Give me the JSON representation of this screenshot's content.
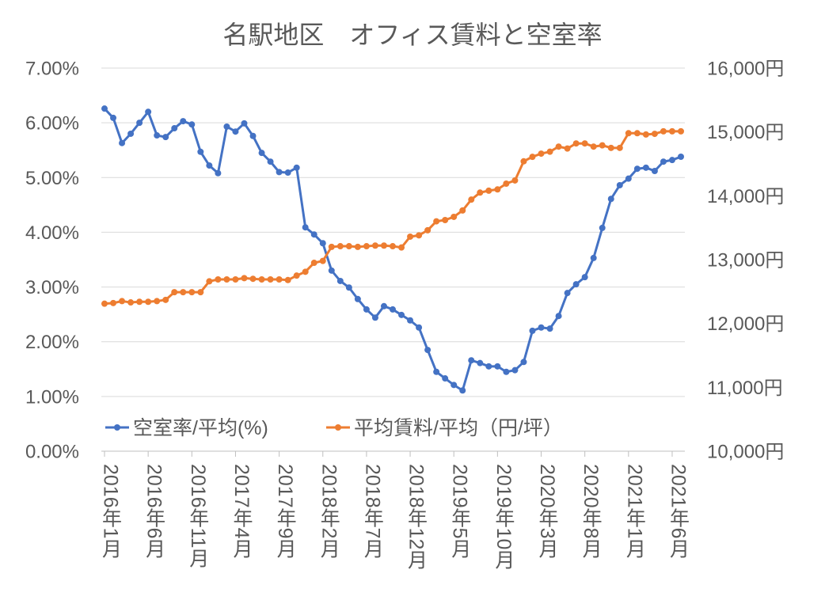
{
  "chart_data": {
    "type": "line",
    "title": "名駅地区　オフィス賃料と空室率",
    "categories": [
      "2016年1月",
      "",
      "",
      "",
      "",
      "2016年6月",
      "",
      "",
      "",
      "",
      "2016年11月",
      "",
      "",
      "",
      "",
      "2017年4月",
      "",
      "",
      "",
      "",
      "2017年9月",
      "",
      "",
      "",
      "",
      "2018年2月",
      "",
      "",
      "",
      "",
      "2018年7月",
      "",
      "",
      "",
      "",
      "2018年12月",
      "",
      "",
      "",
      "",
      "2019年5月",
      "",
      "",
      "",
      "",
      "2019年10月",
      "",
      "",
      "",
      "",
      "2020年3月",
      "",
      "",
      "",
      "",
      "2020年8月",
      "",
      "",
      "",
      "",
      "2021年1月",
      "",
      "",
      "",
      "",
      "2021年6月",
      ""
    ],
    "y_left": {
      "range": [
        0,
        7
      ],
      "tick_labels": [
        "0.00%",
        "1.00%",
        "2.00%",
        "3.00%",
        "4.00%",
        "5.00%",
        "6.00%",
        "7.00%"
      ]
    },
    "y_right": {
      "range": [
        10000,
        16000
      ],
      "tick_labels": [
        "10,000円",
        "11,000円",
        "12,000円",
        "13,000円",
        "14,000円",
        "15,000円",
        "16,000円"
      ]
    },
    "grid": true,
    "legend_position": "bottom-left",
    "series": [
      {
        "name": "空室率/平均(%)",
        "axis": "left",
        "color": "#4472C4",
        "values": [
          6.26,
          6.09,
          5.63,
          5.8,
          6.0,
          6.2,
          5.77,
          5.74,
          5.9,
          6.03,
          5.97,
          5.47,
          5.22,
          5.08,
          5.93,
          5.84,
          5.99,
          5.76,
          5.45,
          5.29,
          5.1,
          5.09,
          5.18,
          4.09,
          3.96,
          3.8,
          3.3,
          3.11,
          2.99,
          2.78,
          2.59,
          2.44,
          2.65,
          2.59,
          2.49,
          2.39,
          2.26,
          1.85,
          1.45,
          1.33,
          1.21,
          1.11,
          1.66,
          1.61,
          1.55,
          1.55,
          1.45,
          1.48,
          1.63,
          2.2,
          2.26,
          2.24,
          2.47,
          2.89,
          3.05,
          3.18,
          3.53,
          4.08,
          4.61,
          4.86,
          4.98,
          5.16,
          5.18,
          5.12,
          5.29,
          5.32,
          5.38
        ]
      },
      {
        "name": "平均賃料/平均（円/坪）",
        "axis": "right",
        "color": "#ED7D31",
        "values": [
          12310,
          12320,
          12350,
          12330,
          12340,
          12340,
          12350,
          12370,
          12490,
          12490,
          12490,
          12490,
          12660,
          12690,
          12690,
          12690,
          12710,
          12700,
          12690,
          12690,
          12690,
          12680,
          12750,
          12810,
          12950,
          12980,
          13200,
          13210,
          13210,
          13200,
          13210,
          13220,
          13220,
          13210,
          13190,
          13360,
          13380,
          13460,
          13600,
          13620,
          13670,
          13770,
          13940,
          14050,
          14080,
          14100,
          14190,
          14240,
          14540,
          14610,
          14660,
          14690,
          14770,
          14740,
          14820,
          14820,
          14770,
          14790,
          14750,
          14750,
          14980,
          14980,
          14960,
          14970,
          15010,
          15010,
          15010
        ]
      }
    ]
  }
}
